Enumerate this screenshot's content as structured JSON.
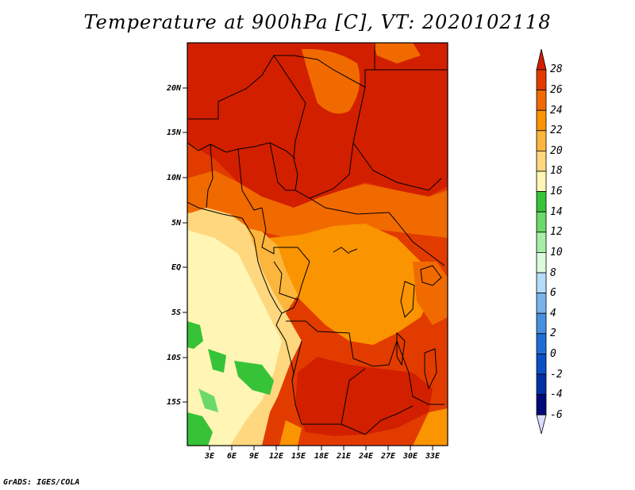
{
  "title": "Temperature at 900hPa [C], VT: 2020102118",
  "credit": "GrADS: IGES/COLA",
  "map": {
    "lat_labels": [
      "20N",
      "15N",
      "10N",
      "5N",
      "EQ",
      "5S",
      "10S",
      "15S"
    ],
    "lon_labels": [
      "3E",
      "6E",
      "9E",
      "12E",
      "15E",
      "18E",
      "21E",
      "24E",
      "27E",
      "30E",
      "33E"
    ]
  },
  "colorbar": {
    "labels": [
      "28",
      "26",
      "24",
      "22",
      "20",
      "18",
      "16",
      "14",
      "12",
      "10",
      "8",
      "6",
      "4",
      "2",
      "0",
      "-2",
      "-4",
      "-6"
    ],
    "colors": [
      "#d21f00",
      "#e23b00",
      "#f16a00",
      "#fa9400",
      "#fcb63d",
      "#fed77e",
      "#fff5b4",
      "#37c337",
      "#6ad96a",
      "#a6eea6",
      "#dcfadc",
      "#b4dcf8",
      "#78b4ec",
      "#4690e0",
      "#1e6ed6",
      "#0a50c3",
      "#0032a5",
      "#000a78",
      "#dcdcff"
    ]
  }
}
